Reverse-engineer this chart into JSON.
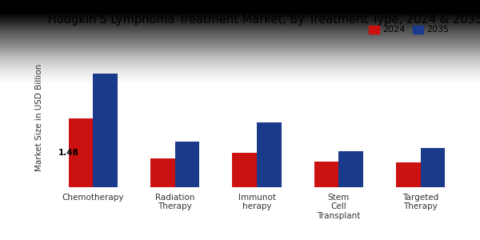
{
  "title": "Hodgkin'S Lymphoma Treatment Market, By Treatment Type, 2024 & 2035",
  "ylabel": "Market Size in USD Billion",
  "categories": [
    "Chemotherapy",
    "Radiation\nTherapy",
    "Immunot\nherapy",
    "Stem\nCell\nTransplant",
    "Targeted\nTherapy"
  ],
  "values_2024": [
    1.48,
    0.62,
    0.75,
    0.55,
    0.53
  ],
  "values_2035": [
    2.45,
    0.98,
    1.4,
    0.78,
    0.85
  ],
  "color_2024": "#cc1111",
  "color_2035": "#1a3a8c",
  "bar_width": 0.3,
  "annotation_label": "1.48",
  "background_color_top": "#d0d0d0",
  "background_color_bottom": "#f5f5f5",
  "legend_labels": [
    "2024",
    "2035"
  ],
  "ylim": [
    0,
    3.0
  ],
  "title_fontsize": 10.5,
  "label_fontsize": 7.5,
  "tick_fontsize": 7.5,
  "legend_fontsize": 8.0
}
